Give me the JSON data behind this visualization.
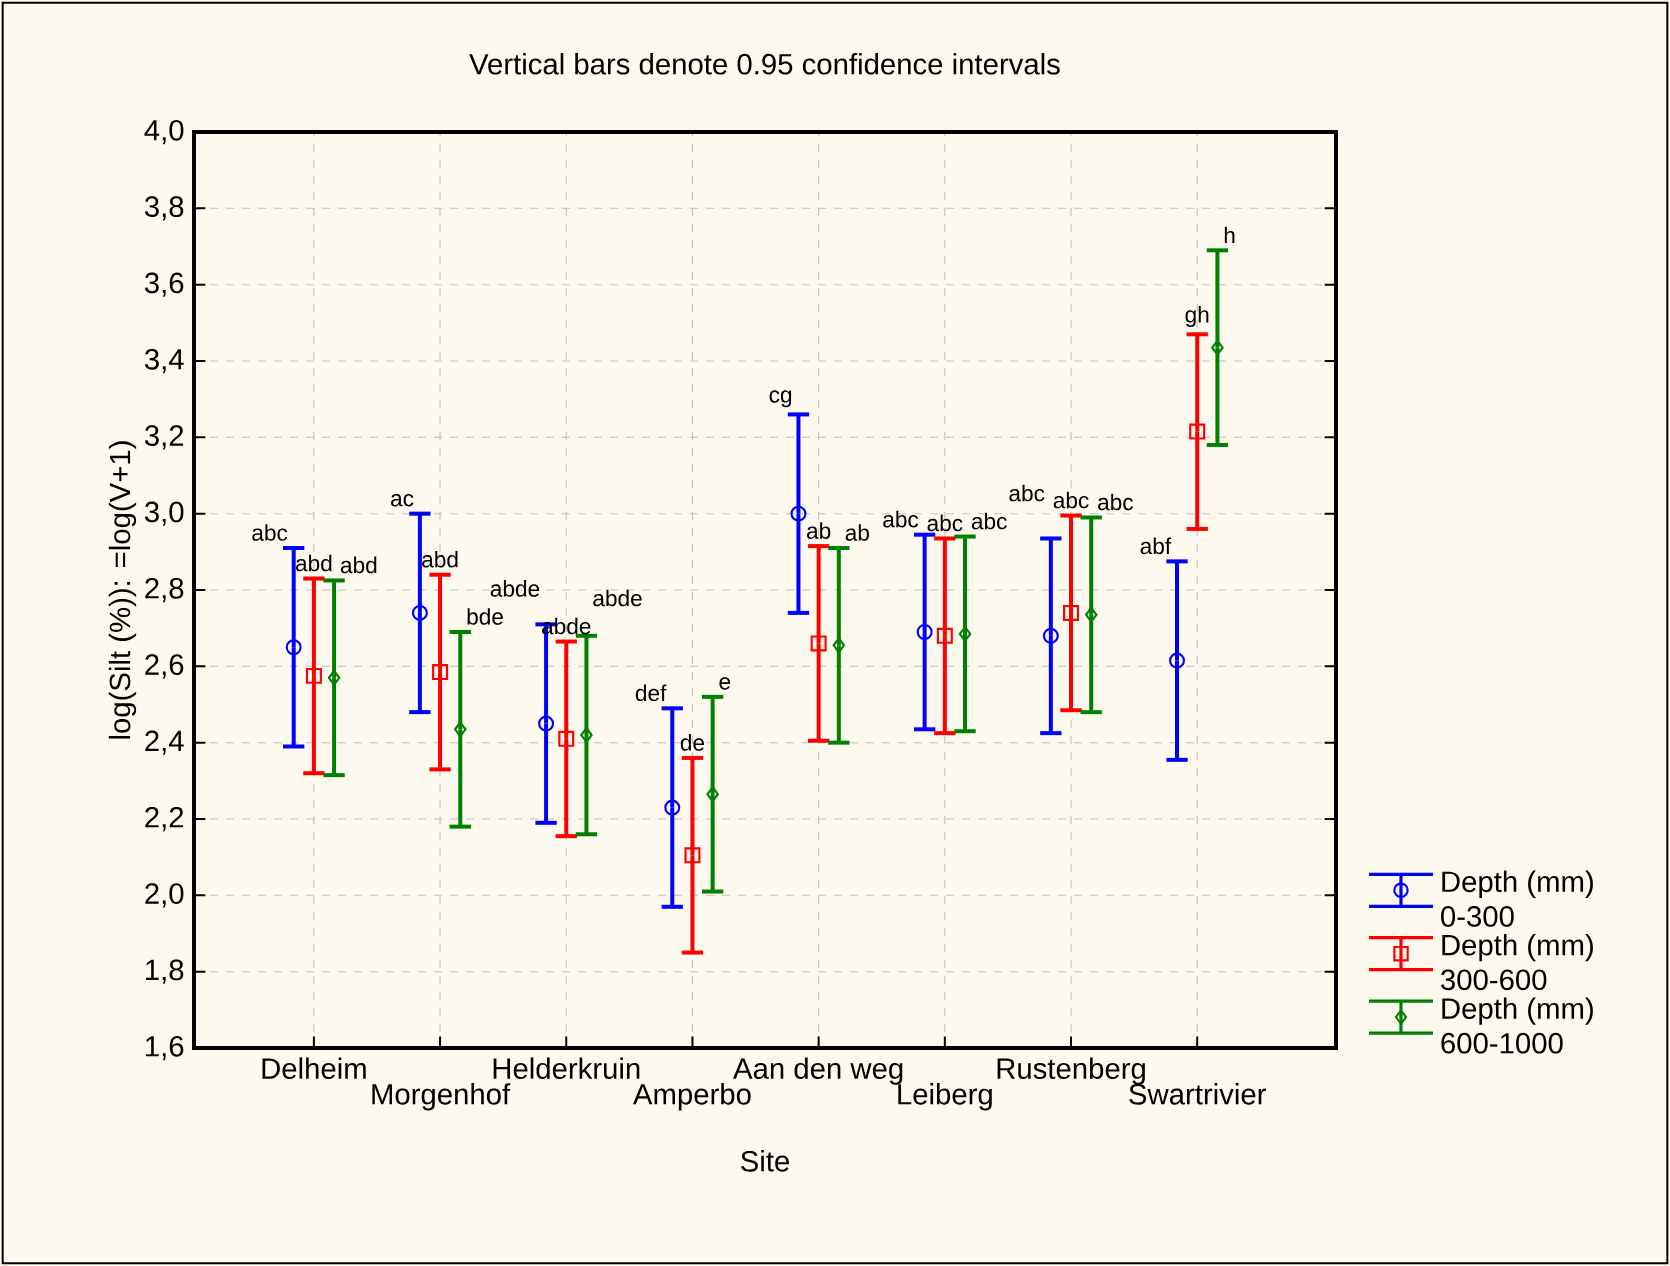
{
  "chart_data": {
    "type": "scatter",
    "title": "Vertical bars denote 0.95 confidence intervals",
    "xlabel": "Site",
    "ylabel": "log(Silt (%)): =log(V+1)",
    "categories": [
      "Delheim",
      "Morgenhof",
      "Helderkruin",
      "Amperbo",
      "Aan den weg",
      "Leiberg",
      "Rustenberg",
      "Swartrivier"
    ],
    "series": [
      {
        "name": "Depth (mm) 0-300",
        "color": "#0000ff",
        "marker": "circle",
        "values": [
          2.65,
          2.74,
          2.45,
          2.23,
          3.0,
          2.69,
          2.68,
          2.615
        ],
        "errors": [
          0.26,
          0.26,
          0.26,
          0.26,
          0.26,
          0.255,
          0.255,
          0.26
        ]
      },
      {
        "name": "Depth (mm) 300-600",
        "color": "#ff0000",
        "marker": "square",
        "values": [
          2.575,
          2.585,
          2.41,
          2.105,
          2.66,
          2.68,
          2.74,
          3.215
        ],
        "errors": [
          0.255,
          0.255,
          0.255,
          0.255,
          0.255,
          0.255,
          0.255,
          0.255
        ]
      },
      {
        "name": "Depth (mm) 600-1000",
        "color": "#008000",
        "marker": "diamond",
        "values": [
          2.57,
          2.435,
          2.42,
          2.265,
          2.655,
          2.685,
          2.735,
          3.435
        ],
        "errors": [
          0.255,
          0.255,
          0.26,
          0.255,
          0.255,
          0.255,
          0.255,
          0.255
        ]
      }
    ],
    "ylim": [
      1.6,
      4.0
    ],
    "yticks": [
      {
        "value": 1.6,
        "label": "1,6"
      },
      {
        "value": 1.8,
        "label": "1,8"
      },
      {
        "value": 2.0,
        "label": "2,0"
      },
      {
        "value": 2.2,
        "label": "2,2"
      },
      {
        "value": 2.4,
        "label": "2,4"
      },
      {
        "value": 2.6,
        "label": "2,6"
      },
      {
        "value": 2.8,
        "label": "2,8"
      },
      {
        "value": 3.0,
        "label": "3,0"
      },
      {
        "value": 3.2,
        "label": "3,2"
      },
      {
        "value": 3.4,
        "label": "3,4"
      },
      {
        "value": 3.6,
        "label": "3,6"
      },
      {
        "value": 3.8,
        "label": "3,8"
      },
      {
        "value": 4.0,
        "label": "4,0"
      }
    ],
    "grid": true,
    "legend": "bottom right",
    "annotations": [
      {
        "text": "abc",
        "x": "Delheim",
        "y": 2.91
      },
      {
        "text": "abd",
        "x": "Delheim",
        "y": 2.83
      },
      {
        "text": "abd",
        "x": "Delheim",
        "y": 2.825
      },
      {
        "text": "ac",
        "x": "Morgenhof",
        "y": 3.0
      },
      {
        "text": "abd",
        "x": "Morgenhof",
        "y": 2.84
      },
      {
        "text": "bde",
        "x": "Morgenhof",
        "y": 2.69
      },
      {
        "text": "abde",
        "x": "Helderkruin",
        "y": 2.71
      },
      {
        "text": "abde",
        "x": "Helderkruin",
        "y": 2.665
      },
      {
        "text": "abde",
        "x": "Helderkruin",
        "y": 2.68
      },
      {
        "text": "def",
        "x": "Amperbo",
        "y": 2.49
      },
      {
        "text": "de",
        "x": "Amperbo",
        "y": 2.36
      },
      {
        "text": "e",
        "x": "Amperbo",
        "y": 2.52
      },
      {
        "text": "cg",
        "x": "Aan den weg",
        "y": 3.26
      },
      {
        "text": "ab",
        "x": "Aan den weg",
        "y": 2.915
      },
      {
        "text": "ab",
        "x": "Aan den weg",
        "y": 2.91
      },
      {
        "text": "abc",
        "x": "Leiberg",
        "y": 2.945
      },
      {
        "text": "abc",
        "x": "Leiberg",
        "y": 2.935
      },
      {
        "text": "abc",
        "x": "Leiberg",
        "y": 2.94
      },
      {
        "text": "abc",
        "x": "Rustenberg",
        "y": 2.935
      },
      {
        "text": "abc",
        "x": "Rustenberg",
        "y": 2.995
      },
      {
        "text": "abc",
        "x": "Rustenberg",
        "y": 2.99
      },
      {
        "text": "abf",
        "x": "Swartrivier",
        "y": 2.875
      },
      {
        "text": "gh",
        "x": "Swartrivier",
        "y": 3.47
      },
      {
        "text": "h",
        "x": "Swartrivier",
        "y": 3.69
      }
    ]
  }
}
